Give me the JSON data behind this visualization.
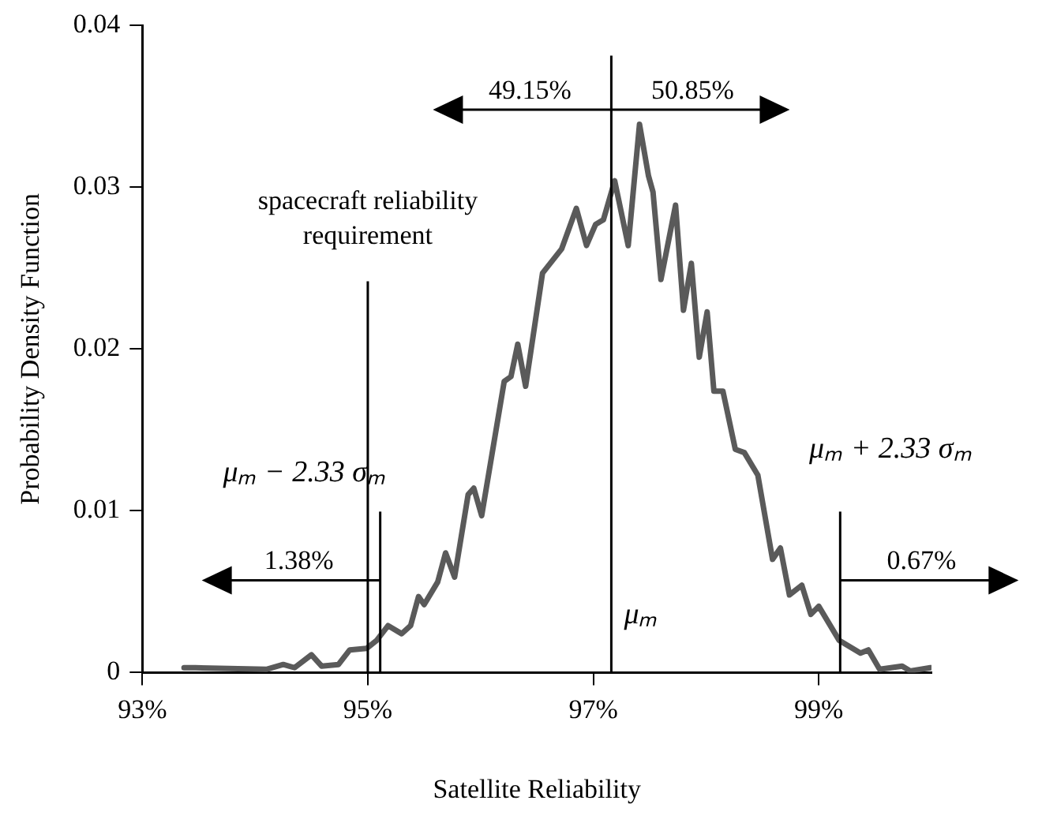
{
  "chart_data": {
    "type": "line",
    "xlabel": "Satellite Reliability",
    "ylabel": "Probability Density Function",
    "series": [
      {
        "color": "#5a5a5a",
        "x": [
          93.37,
          93.47,
          94.1,
          94.25,
          94.35,
          94.5,
          94.59,
          94.74,
          94.84,
          94.99,
          95.08,
          95.18,
          95.3,
          95.38,
          95.45,
          95.5,
          95.62,
          95.69,
          95.77,
          95.89,
          95.94,
          96.01,
          96.21,
          96.27,
          96.33,
          96.4,
          96.55,
          96.72,
          96.85,
          96.94,
          97.02,
          97.09,
          97.19,
          97.31,
          97.41,
          97.49,
          97.53,
          97.6,
          97.73,
          97.8,
          97.87,
          97.94,
          98.01,
          98.07,
          98.15,
          98.26,
          98.34,
          98.46,
          98.59,
          98.66,
          98.74,
          98.85,
          98.93,
          99.0,
          99.18,
          99.37,
          99.44,
          99.54,
          99.74,
          99.81,
          99.99
        ],
        "values": [
          0.0003,
          0.0003,
          0.0002,
          0.0005,
          0.0003,
          0.0011,
          0.0004,
          0.0005,
          0.0014,
          0.0015,
          0.002,
          0.0029,
          0.0024,
          0.0029,
          0.0047,
          0.0042,
          0.0056,
          0.0074,
          0.0059,
          0.011,
          0.0114,
          0.0097,
          0.018,
          0.0183,
          0.0203,
          0.0177,
          0.0247,
          0.0262,
          0.0287,
          0.0264,
          0.0277,
          0.028,
          0.0304,
          0.0264,
          0.0339,
          0.0307,
          0.0297,
          0.0243,
          0.0289,
          0.0224,
          0.0253,
          0.0195,
          0.0223,
          0.0174,
          0.0174,
          0.0138,
          0.0136,
          0.0122,
          0.007,
          0.0077,
          0.0048,
          0.0054,
          0.0036,
          0.0041,
          0.002,
          0.0012,
          0.0014,
          0.0002,
          0.0004,
          0.0001,
          0.0003
        ]
      }
    ],
    "xlim": [
      93,
      100
    ],
    "xticks": [
      {
        "value": 93,
        "label": "93%"
      },
      {
        "value": 95,
        "label": "95%"
      },
      {
        "value": 97,
        "label": "97%"
      },
      {
        "value": 99,
        "label": "99%"
      }
    ],
    "ylim": [
      0,
      0.04
    ],
    "yticks": [
      0,
      0.01,
      0.02,
      0.03,
      0.04
    ],
    "grid": false,
    "legend": false,
    "marker": "none",
    "line_style": "solid",
    "ref_lines": [
      {
        "axis": "x",
        "value": 95.0,
        "label": "spacecraft reliability requirement",
        "color": "#000000"
      },
      {
        "axis": "x",
        "value": 95.11,
        "label": "μₘ − 2.33 σₘ",
        "color": "#000000"
      },
      {
        "axis": "x",
        "value": 97.16,
        "label": "μₘ",
        "color": "#000000"
      },
      {
        "axis": "x",
        "value": 99.19,
        "label": "μₘ + 2.33 σₘ",
        "color": "#000000"
      }
    ],
    "annotations": [
      {
        "text": "49.15%",
        "x": 97.16,
        "y": 0.0348
      },
      {
        "text": "50.85%",
        "x": 97.16,
        "y": 0.0348
      },
      {
        "text": "1.38%",
        "x": 95.11,
        "y": 0.0057
      },
      {
        "text": "0.67%",
        "x": 99.19,
        "y": 0.0057
      }
    ]
  }
}
